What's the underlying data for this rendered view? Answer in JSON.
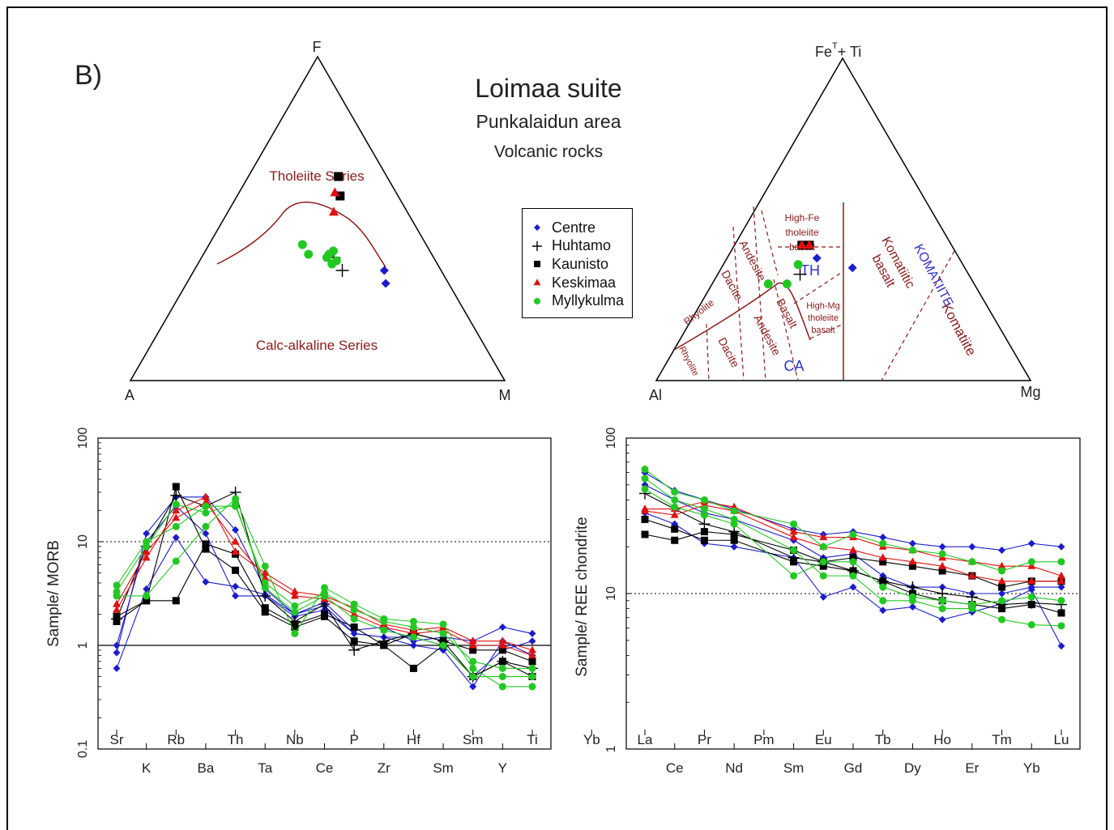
{
  "panel_label": "B)",
  "title": {
    "line1": "Loimaa suite",
    "line2": "Punkalaidun area",
    "line3": "Volcanic rocks"
  },
  "legend": [
    {
      "name": "Centre",
      "color": "#1c1ccc",
      "marker": "diamond"
    },
    {
      "name": "Huhtamo",
      "color": "#000000",
      "marker": "plus"
    },
    {
      "name": "Kaunisto",
      "color": "#000000",
      "marker": "square"
    },
    {
      "name": "Keskimaa",
      "color": "#e01010",
      "marker": "triangle"
    },
    {
      "name": "Myllykulma",
      "color": "#22c822",
      "marker": "circle"
    }
  ],
  "chart_data": [
    {
      "type": "scatter",
      "subtype": "ternary AFM",
      "apex_labels": {
        "top": "F",
        "left": "A",
        "right": "M"
      },
      "field_labels": [
        "Tholeiite Series",
        "Calc-alkaline Series"
      ],
      "series": [
        {
          "name": "Centre",
          "points": [
            [
              0.24,
              0.3
            ],
            [
              0.23,
              0.34
            ]
          ]
        },
        {
          "name": "Huhtamo",
          "points": [
            [
              0.43,
              0.38
            ],
            [
              0.4,
              0.34
            ]
          ]
        },
        {
          "name": "Kaunisto",
          "points": [
            [
              0.35,
              0.63
            ],
            [
              0.36,
              0.57
            ]
          ]
        },
        {
          "name": "Keskimaa",
          "points": [
            [
              0.39,
              0.58
            ],
            [
              0.41,
              0.52
            ]
          ]
        },
        {
          "name": "Myllykulma",
          "points": [
            [
              0.57,
              0.42
            ],
            [
              0.54,
              0.39
            ],
            [
              0.45,
              0.39
            ],
            [
              0.46,
              0.38
            ],
            [
              0.43,
              0.4
            ],
            [
              0.42,
              0.37
            ],
            [
              0.44,
              0.36
            ]
          ]
        }
      ]
    },
    {
      "type": "scatter",
      "subtype": "ternary Jensen cation plot",
      "apex_labels": {
        "top_main": "Fe",
        "top_sup": "T",
        "top_tail": "+ Ti",
        "left": "Al",
        "right": "Mg"
      },
      "field_labels": {
        "red": [
          "High-Fe",
          "tholeiite",
          "basalt",
          "Andesite",
          "Dacite",
          "Rhyolite",
          "Rhyolite",
          "Dacite",
          "Andesite",
          "Basalt",
          "High-Mg",
          "tholeiite",
          "basalt",
          "Komatiitic",
          "basalt",
          "Komatiite"
        ],
        "blue": [
          "TH",
          "CA",
          "KOMATIITE"
        ]
      },
      "series": [
        {
          "name": "Centre",
          "points": [
            [
              0.38,
              0.38,
              0.24
            ],
            [
              0.3,
              0.35,
              0.35
            ]
          ]
        },
        {
          "name": "Huhtamo",
          "points": [
            [
              0.45,
              0.33,
              0.22
            ]
          ]
        },
        {
          "name": "Kaunisto",
          "points": [
            [
              0.4,
              0.42,
              0.18
            ],
            [
              0.38,
              0.42,
              0.2
            ]
          ]
        },
        {
          "name": "Keskimaa",
          "points": [
            [
              0.4,
              0.42,
              0.18
            ],
            [
              0.38,
              0.42,
              0.2
            ]
          ]
        },
        {
          "name": "Myllykulma",
          "points": [
            [
              0.55,
              0.3,
              0.15
            ],
            [
              0.5,
              0.3,
              0.2
            ],
            [
              0.44,
              0.36,
              0.2
            ]
          ]
        }
      ]
    },
    {
      "type": "line",
      "subtype": "MORB-normalized spider diagram",
      "ylabel": "Sample/ MORB",
      "yscale": "log",
      "ylim": [
        0.1,
        100
      ],
      "yticks": [
        "100",
        "10",
        "1",
        "0.1"
      ],
      "categories_top": [
        "Sr",
        "Rb",
        "Th",
        "Nb",
        "P",
        "Hf",
        "Sm",
        "Ti",
        "Yb"
      ],
      "categories_bottom": [
        "K",
        "Ba",
        "Ta",
        "Ce",
        "Zr",
        "Sm",
        "Y"
      ],
      "x_order": [
        "Sr",
        "K",
        "Rb",
        "Ba",
        "Th",
        "Ta",
        "Nb",
        "Ce",
        "P",
        "Zr",
        "Hf",
        "Sm",
        "Ti",
        "Y",
        "Yb"
      ],
      "series": [
        {
          "name": "Centre",
          "values": [
            0.6,
            3.5,
            11,
            4.1,
            3.7,
            3.1,
            2.0,
            2.4,
            1.3,
            1.2,
            1.2,
            1.0,
            0.5,
            0.9,
            1.1
          ]
        },
        {
          "name": "Centre",
          "values": [
            0.85,
            12,
            27,
            27,
            13,
            3.5,
            2.0,
            2.6,
            1.4,
            1.5,
            1.1,
            1.2,
            1.1,
            1.5,
            1.3
          ]
        },
        {
          "name": "Centre",
          "values": [
            1.0,
            10,
            22,
            12,
            3.0,
            3.0,
            1.9,
            2.2,
            1.3,
            1.2,
            1.0,
            0.9,
            0.4,
            1.1,
            0.8
          ]
        },
        {
          "name": "Huhtamo",
          "values": [
            1.8,
            9,
            28,
            22,
            30,
            3.0,
            1.7,
            2.5,
            0.9,
            1.1,
            1.3,
            1.1,
            0.5,
            0.7,
            0.6
          ]
        },
        {
          "name": "Kaunisto",
          "values": [
            1.7,
            2.7,
            34,
            8.5,
            5.3,
            2.1,
            1.5,
            1.9,
            1.1,
            1.0,
            0.6,
            1.0,
            0.5,
            0.7,
            0.5
          ]
        },
        {
          "name": "Kaunisto",
          "values": [
            1.9,
            2.7,
            2.7,
            9.5,
            7.6,
            2.3,
            1.6,
            2.0,
            1.5,
            1.0,
            1.3,
            1.1,
            0.9,
            0.9,
            0.7
          ]
        },
        {
          "name": "Keskimaa",
          "values": [
            2.2,
            7,
            20,
            27,
            8,
            5,
            3.3,
            3.0,
            2.3,
            1.6,
            1.4,
            1.5,
            1.1,
            1.1,
            0.9
          ]
        },
        {
          "name": "Keskimaa",
          "values": [
            2.5,
            8,
            17,
            24,
            10,
            4.5,
            3.0,
            2.8,
            2.0,
            1.5,
            1.3,
            1.4,
            1.0,
            1.0,
            0.8
          ]
        },
        {
          "name": "Myllykulma",
          "values": [
            3.0,
            3.0,
            6.5,
            14,
            26,
            5.8,
            1.3,
            3.6,
            2.5,
            1.8,
            1.7,
            1.6,
            0.6,
            0.4,
            0.4
          ]
        },
        {
          "name": "Myllykulma",
          "values": [
            3.8,
            10,
            14,
            22,
            22,
            4,
            2.4,
            3.2,
            2.2,
            1.7,
            1.5,
            1.3,
            0.7,
            0.6,
            0.6
          ]
        },
        {
          "name": "Myllykulma",
          "values": [
            3.3,
            9,
            23,
            19,
            23,
            3.6,
            2.1,
            3.0,
            1.8,
            1.4,
            1.2,
            1.0,
            0.5,
            0.5,
            0.5
          ]
        }
      ]
    },
    {
      "type": "line",
      "subtype": "chondrite-normalized REE diagram",
      "ylabel": "Sample/ REE chondrite",
      "yscale": "log",
      "ylim": [
        1,
        100
      ],
      "yticks": [
        "100",
        "10",
        "1"
      ],
      "categories_top": [
        "La",
        "Pr",
        "Pm",
        "Eu",
        "Tb",
        "Ho",
        "Tm",
        "Lu"
      ],
      "categories_bottom": [
        "Ce",
        "Nd",
        "Sm",
        "Gd",
        "Dy",
        "Er",
        "Yb"
      ],
      "x_order": [
        "La",
        "Ce",
        "Pr",
        "Nd",
        "Pm",
        "Sm",
        "Eu",
        "Gd",
        "Tb",
        "Dy",
        "Ho",
        "Er",
        "Tm",
        "Yb",
        "Lu"
      ],
      "series": [
        {
          "name": "Centre",
          "values": [
            60,
            46,
            null,
            35,
            null,
            26,
            24,
            25,
            23,
            21,
            20,
            20,
            19,
            21,
            20
          ]
        },
        {
          "name": "Centre",
          "values": [
            33,
            28,
            21,
            20,
            null,
            17,
            9.5,
            11,
            7.8,
            8.2,
            6.8,
            7.6,
            8.6,
            10.6,
            4.6
          ]
        },
        {
          "name": "Centre",
          "values": [
            50,
            40,
            33,
            30,
            null,
            22,
            17,
            18,
            13,
            11,
            11,
            10,
            10,
            11,
            11
          ]
        },
        {
          "name": "Huhtamo",
          "values": [
            44,
            35,
            28,
            25,
            null,
            17,
            16,
            14,
            12,
            11,
            10,
            9.5,
            8.5,
            8.7,
            8.5
          ]
        },
        {
          "name": "Kaunisto",
          "values": [
            24,
            22,
            25,
            24,
            null,
            19,
            16,
            17,
            16,
            15,
            14,
            13,
            11,
            12,
            12
          ]
        },
        {
          "name": "Kaunisto",
          "values": [
            30,
            26,
            22,
            22,
            null,
            16,
            15,
            14,
            12,
            10,
            9,
            8.5,
            8,
            8.5,
            7.5
          ]
        },
        {
          "name": "Keskimaa",
          "values": [
            35,
            35,
            39,
            36,
            null,
            25,
            23,
            23,
            20,
            19,
            17,
            16,
            15,
            15,
            13
          ]
        },
        {
          "name": "Keskimaa",
          "values": [
            34,
            32,
            37,
            34,
            null,
            23,
            20,
            19,
            17,
            16,
            15,
            13,
            12,
            12,
            12
          ]
        },
        {
          "name": "Myllykulma",
          "values": [
            63,
            45,
            40,
            34,
            null,
            28,
            20,
            24,
            21,
            19,
            18,
            16,
            14,
            16,
            16
          ]
        },
        {
          "name": "Myllykulma",
          "values": [
            55,
            40,
            35,
            30,
            null,
            19,
            13,
            13,
            9,
            9,
            8,
            8,
            6.8,
            6.3,
            6.2
          ]
        },
        {
          "name": "Myllykulma",
          "values": [
            47,
            36,
            32,
            28,
            null,
            13,
            16,
            16,
            11,
            9.5,
            9,
            8.5,
            9,
            9.5,
            9
          ]
        }
      ]
    }
  ]
}
